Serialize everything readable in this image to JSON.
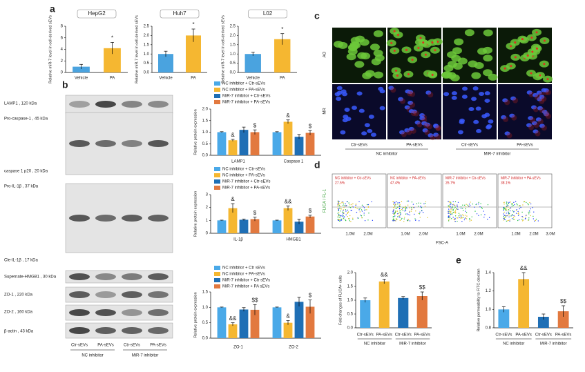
{
  "panel_labels": [
    "a",
    "b",
    "c",
    "d",
    "e"
  ],
  "blot": {
    "labels": [
      "LAMP1 , 120 kDa",
      "Pro-caspase-1 , 45 kDa",
      "caspase 1 p20 , 20 kDa",
      "Pro-IL-1β , 37 kDa",
      "Cle-IL-1β , 17 kDa",
      "Supernate-HMGB1 , 30 kDa",
      "ZO-1 , 220 kDa",
      "ZO-2 , 160 kDa",
      "β-actin , 43 kDa"
    ],
    "lanes": [
      "Ctr-sEVs",
      "PA-sEVs",
      "Ctr-sEVs",
      "PA-sEVs"
    ],
    "groups": [
      "NC inhibitor",
      "MiR-7 inhibitor"
    ]
  },
  "microscopy": {
    "rows": [
      "AO",
      "MR"
    ],
    "columns": [
      "Ctr-sEVs",
      "PA-sEVs",
      "Ctr-sEVs",
      "PA-sEVs"
    ],
    "groups": [
      "NC inhibitor",
      "MiR-7 inhibitor"
    ]
  },
  "flow": {
    "gates": [
      "NC inhibitor + Ctr-sEVs",
      "NC inhibitor + PA-sEVs",
      "MiR-7 inhibitor + Ctr-sEVs",
      "MiR-7 inhibitor + PA-sEVs"
    ],
    "percents": [
      "27.5%",
      "47.4%",
      "26.7%",
      "38.1%"
    ],
    "xticks": [
      "1.0M",
      "2.0M",
      "3.0M"
    ],
    "x_label": "FSC-A",
    "y_label": "FLICA / FL-1"
  },
  "chart_data": [
    {
      "type": "bar",
      "title": "HepG2",
      "y_label": "Relative miR-7 level in cell-derived sEVs",
      "categories": [
        "Vehicle",
        "PA"
      ],
      "values": [
        1.0,
        4.2
      ],
      "errors": [
        0.4,
        1.0
      ],
      "colors": [
        "#4aa3df",
        "#f5b731"
      ],
      "markers": [
        null,
        "*"
      ],
      "ylim": [
        0,
        8
      ],
      "yticks": [
        0,
        2,
        4,
        6,
        8
      ]
    },
    {
      "type": "bar",
      "title": "Huh7",
      "y_label": "Relative miR-7 level in cell-derived sEVs",
      "categories": [
        "Vehicle",
        "PA"
      ],
      "values": [
        1.0,
        2.0
      ],
      "errors": [
        0.15,
        0.35
      ],
      "colors": [
        "#4aa3df",
        "#f5b731"
      ],
      "markers": [
        null,
        "*"
      ],
      "ylim": [
        0,
        2.5
      ],
      "yticks": [
        {
          "value": 0,
          "label": "0.0"
        },
        0.5,
        {
          "value": 1,
          "label": "1.0"
        },
        1.5,
        {
          "value": 2,
          "label": "2.0"
        },
        2.5
      ]
    },
    {
      "type": "bar",
      "title": "L02",
      "y_label": "Relative miR-7 level in cell-derived sEVs",
      "categories": [
        "Vehicle",
        "PA"
      ],
      "values": [
        1.0,
        1.8
      ],
      "errors": [
        0.1,
        0.3
      ],
      "colors": [
        "#4aa3df",
        "#f5b731"
      ],
      "markers": [
        null,
        "*"
      ],
      "ylim": [
        0,
        2.5
      ],
      "yticks": [
        {
          "value": 0,
          "label": "0.0"
        },
        0.5,
        {
          "value": 1,
          "label": "1.0"
        },
        1.5,
        {
          "value": 2,
          "label": "2.0"
        },
        2.5
      ]
    },
    {
      "type": "bar",
      "y_label": "Relative protein expression",
      "categories": [
        "LAMP1",
        "Caspase 1"
      ],
      "ylim": [
        0,
        2.0
      ],
      "yticks": [
        {
          "value": 0,
          "label": "0.0"
        },
        0.5,
        {
          "value": 1,
          "label": "1.0"
        },
        1.5,
        {
          "value": 2,
          "label": "2.0"
        }
      ],
      "series": [
        {
          "name": "NC inhibitor + Ctr-sEVs",
          "color": "#4aa9e8",
          "values": [
            1.0,
            1.0
          ],
          "errors": [
            0.02,
            0.02
          ],
          "markers": [
            null,
            null
          ]
        },
        {
          "name": "NC inhibitor + PA-sEVs",
          "color": "#f5b731",
          "values": [
            0.65,
            1.45
          ],
          "errors": [
            0.04,
            0.08
          ],
          "markers": [
            "&",
            "&"
          ]
        },
        {
          "name": "MiR-7 inhibitor + Ctr-sEVs",
          "color": "#1f6fb5",
          "values": [
            1.1,
            0.8
          ],
          "errors": [
            0.12,
            0.1
          ],
          "markers": [
            null,
            null
          ]
        },
        {
          "name": "MiR-7 inhibitor + PA-sEVs",
          "color": "#e2793f",
          "values": [
            1.0,
            0.97
          ],
          "errors": [
            0.1,
            0.1
          ],
          "markers": [
            "$",
            "$"
          ]
        }
      ]
    },
    {
      "type": "bar",
      "y_label": "Relative protein expression",
      "categories": [
        "IL-1β",
        "HMGB1"
      ],
      "ylim": [
        0,
        3
      ],
      "yticks": [
        0,
        1,
        2,
        3
      ],
      "series": [
        {
          "name": "NC inhibitor + Ctr-sEVs",
          "color": "#4aa9e8",
          "values": [
            1.0,
            1.0
          ],
          "errors": [
            0.02,
            0.02
          ],
          "markers": [
            null,
            null
          ]
        },
        {
          "name": "NC inhibitor + PA-sEVs",
          "color": "#f5b731",
          "values": [
            1.95,
            1.95
          ],
          "errors": [
            0.35,
            0.18
          ],
          "markers": [
            "&",
            "&&"
          ]
        },
        {
          "name": "MiR-7 inhibitor + Ctr-sEVs",
          "color": "#1f6fb5",
          "values": [
            1.05,
            0.9
          ],
          "errors": [
            0.06,
            0.2
          ],
          "markers": [
            null,
            null
          ]
        },
        {
          "name": "MiR-7 inhibitor + PA-sEVs",
          "color": "#e2793f",
          "values": [
            1.1,
            1.3
          ],
          "errors": [
            0.15,
            0.1
          ],
          "markers": [
            "$",
            "$"
          ]
        }
      ]
    },
    {
      "type": "bar",
      "y_label": "Relative protein expression",
      "categories": [
        "ZO-1",
        "ZO-2"
      ],
      "ylim": [
        0,
        1.5
      ],
      "yticks": [
        {
          "value": 0,
          "label": "0.0"
        },
        0.5,
        {
          "value": 1,
          "label": "1.0"
        },
        1.5
      ],
      "series": [
        {
          "name": "NC inhibitor + Ctr sEVs",
          "color": "#4aa9e8",
          "values": [
            1.0,
            1.0
          ],
          "errors": [
            0.01,
            0.01
          ],
          "markers": [
            null,
            null
          ]
        },
        {
          "name": "NC inhibitor + PA-sEVs",
          "color": "#f5b731",
          "values": [
            0.45,
            0.5
          ],
          "errors": [
            0.05,
            0.07
          ],
          "markers": [
            "&&",
            "&"
          ]
        },
        {
          "name": "MiR-7 inhibitor + Ctr sEVs",
          "color": "#1f6fb5",
          "values": [
            0.93,
            1.18
          ],
          "errors": [
            0.06,
            0.15
          ],
          "markers": [
            null,
            null
          ]
        },
        {
          "name": "MiR-7 inhibitor + PA sEVs",
          "color": "#e2793f",
          "values": [
            0.92,
            1.02
          ],
          "errors": [
            0.17,
            0.22
          ],
          "markers": [
            "$$",
            "$"
          ]
        }
      ]
    },
    {
      "type": "bar",
      "y_label": "Fold changes of FLICA+ cells",
      "categories": [
        "Ctr-sEVs",
        "PA-sEVs",
        "Ctr-sEVs",
        "PA-sEVs"
      ],
      "groups": [
        "NC inhibitor",
        "MiR-7 inhibitor"
      ],
      "values": [
        1.0,
        1.68,
        1.08,
        1.15
      ],
      "errors": [
        0.08,
        0.08,
        0.05,
        0.15
      ],
      "colors": [
        "#4aa9e8",
        "#f5b731",
        "#1f6fb5",
        "#e2793f"
      ],
      "markers": [
        null,
        "&&",
        null,
        "$$"
      ],
      "ylim": [
        0,
        2.0
      ],
      "yticks": [
        {
          "value": 0,
          "label": "0.0"
        },
        0.5,
        {
          "value": 1,
          "label": "1.0"
        },
        1.5,
        {
          "value": 2,
          "label": "2.0"
        }
      ]
    },
    {
      "type": "bar",
      "y_label": "Relative permeability to FITC-dextran",
      "categories": [
        "Ctr-sEVs",
        "PA-sEVs",
        "Ctr-sEVs",
        "PA-sEVs"
      ],
      "groups": [
        "NC inhibitor",
        "MiR-7 inhibitor"
      ],
      "values": [
        1.0,
        1.33,
        0.92,
        0.98
      ],
      "errors": [
        0.03,
        0.07,
        0.03,
        0.06
      ],
      "colors": [
        "#4aa9e8",
        "#f5b731",
        "#1f6fb5",
        "#e2793f"
      ],
      "markers": [
        null,
        "&&",
        null,
        "$$"
      ],
      "ylim": [
        0.8,
        1.4
      ],
      "yticks": [
        0.8,
        {
          "value": 1,
          "label": "1.0"
        },
        1.2,
        1.4
      ]
    }
  ]
}
